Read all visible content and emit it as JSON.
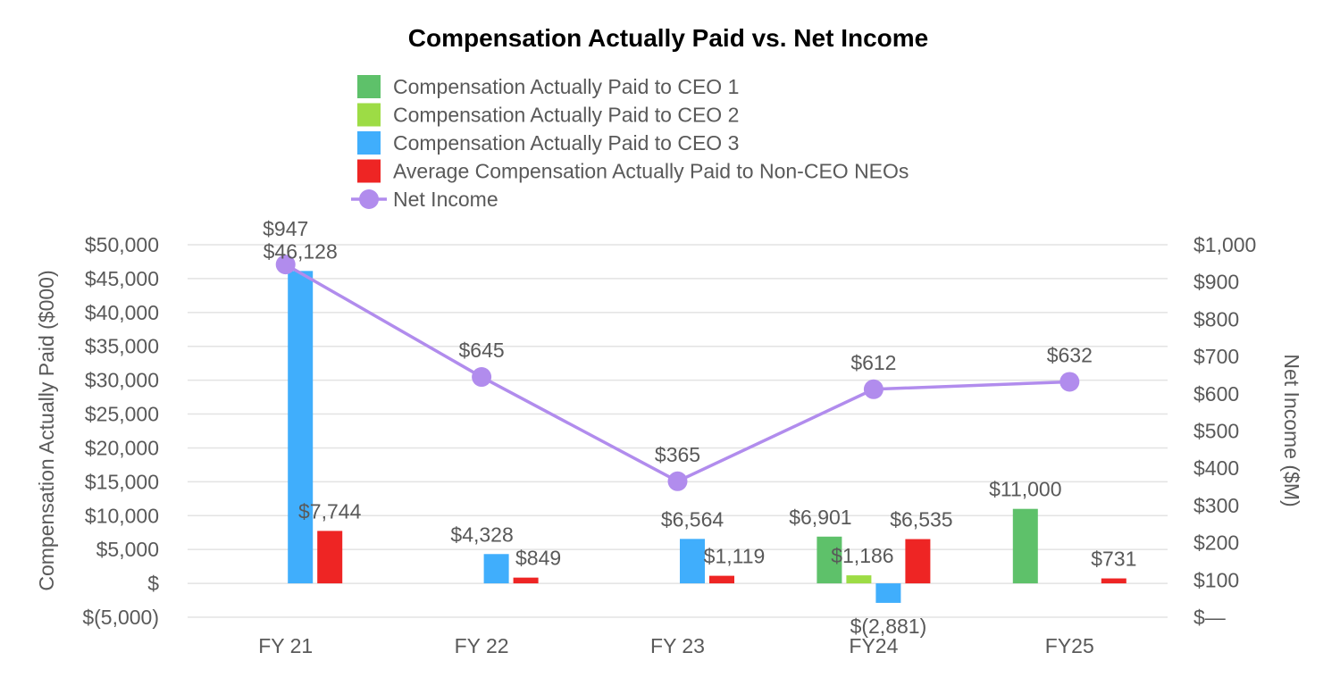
{
  "chart_data": {
    "type": "bar",
    "title": "Compensation Actually Paid vs. Net Income",
    "categories": [
      "FY 21",
      "FY 22",
      "FY 23",
      "FY24",
      "FY25"
    ],
    "series": [
      {
        "name": "Compensation Actually Paid to CEO 1",
        "color": "#5ec16a",
        "axis": "left",
        "values": [
          null,
          null,
          null,
          6901,
          11000
        ],
        "labels": [
          "",
          "",
          "",
          "$6,901",
          "$11,000"
        ]
      },
      {
        "name": "Compensation Actually Paid to CEO 2",
        "color": "#9ddc45",
        "axis": "left",
        "values": [
          null,
          null,
          null,
          1186,
          null
        ],
        "labels": [
          "",
          "",
          "",
          "$1,186",
          ""
        ]
      },
      {
        "name": "Compensation Actually Paid to CEO 3",
        "color": "#40aefc",
        "axis": "left",
        "values": [
          46128,
          4328,
          6564,
          -2881,
          null
        ],
        "labels": [
          "$46,128",
          "$4,328",
          "$6,564",
          "$(2,881)",
          ""
        ]
      },
      {
        "name": "Average Compensation Actually Paid to Non-CEO NEOs",
        "color": "#ee2524",
        "axis": "left",
        "values": [
          7744,
          849,
          1119,
          6535,
          731
        ],
        "labels": [
          "$7,744",
          "$849",
          "$1,119",
          "$6,535",
          "$731"
        ]
      },
      {
        "name": "Net Income",
        "type": "line",
        "color": "#b18ced",
        "axis": "right",
        "values": [
          947,
          645,
          365,
          612,
          632
        ],
        "labels": [
          "$947",
          "$645",
          "$365",
          "$612",
          "$632"
        ]
      }
    ],
    "left_axis": {
      "title": "Compensation Actually Paid ($000)",
      "min": -5000,
      "max": 50000,
      "step": 5000,
      "tick_labels": [
        "$(5,000)",
        "$",
        "$5,000",
        "$10,000",
        "$15,000",
        "$20,000",
        "$25,000",
        "$30,000",
        "$35,000",
        "$40,000",
        "$45,000",
        "$50,000"
      ]
    },
    "right_axis": {
      "title": "Net Income ($M)",
      "min": 0,
      "max": 1000,
      "step": 100,
      "tick_labels": [
        "$—",
        "$100",
        "$200",
        "$300",
        "$400",
        "$500",
        "$600",
        "$700",
        "$800",
        "$900",
        "$1,000"
      ]
    },
    "grid": true,
    "legend_position": "top"
  }
}
